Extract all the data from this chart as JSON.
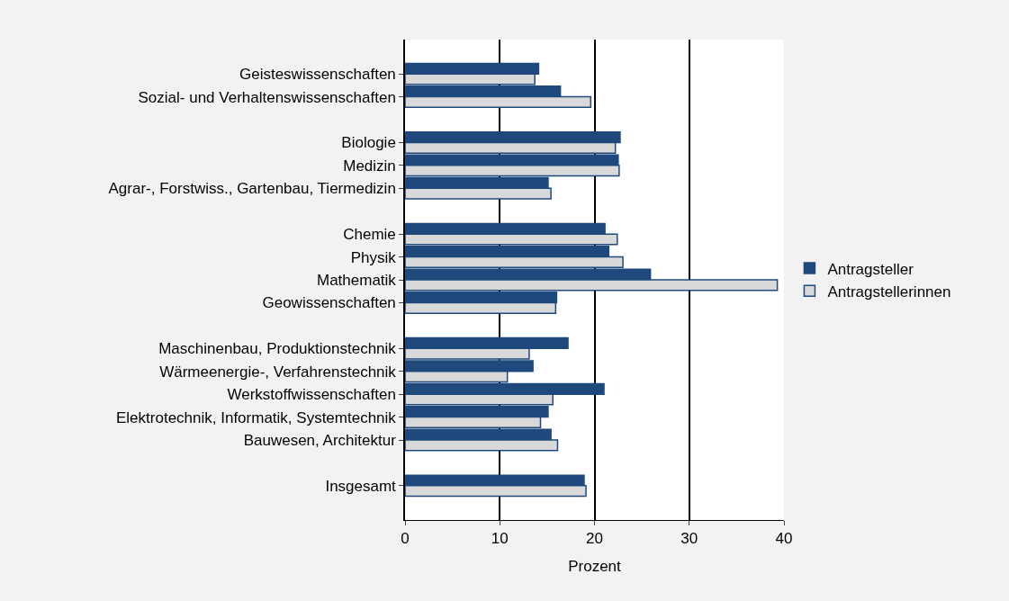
{
  "chart_data": {
    "type": "bar",
    "orientation": "horizontal",
    "xlabel": "Prozent",
    "categories": [
      null,
      "Geisteswissenschaften",
      "Sozial- und Verhaltenswissenschaften",
      null,
      "Biologie",
      "Medizin",
      "Agrar-, Forstwiss., Gartenbau, Tiermedizin",
      null,
      "Chemie",
      "Physik",
      "Mathematik",
      "Geowissenschaften",
      null,
      "Maschinenbau, Produktionstechnik",
      "Wärmeenergie-, Verfahrenstechnik",
      "Werkstoffwissenschaften",
      "Elektrotechnik, Informatik, Systemtechnik",
      "Bauwesen, Architektur",
      null,
      "Insgesamt",
      null
    ],
    "series": [
      {
        "name": "Antragsteller",
        "color": "#1f497d",
        "values": [
          null,
          14.1,
          16.4,
          null,
          22.7,
          22.5,
          15.1,
          null,
          21.1,
          21.5,
          25.9,
          16.0,
          null,
          17.2,
          13.5,
          21.0,
          15.1,
          15.4,
          null,
          18.9,
          null
        ]
      },
      {
        "name": "Antragstellerinnen",
        "color": "#d9d9d9",
        "values": [
          null,
          13.7,
          19.6,
          null,
          22.2,
          22.6,
          15.4,
          null,
          22.4,
          23.0,
          39.3,
          15.9,
          null,
          13.1,
          10.8,
          15.6,
          14.3,
          16.1,
          null,
          19.1,
          null
        ]
      }
    ],
    "xlim": [
      0,
      40
    ],
    "xticks": [
      0,
      10,
      20,
      30,
      40
    ],
    "grid": "x",
    "legend": "right"
  }
}
